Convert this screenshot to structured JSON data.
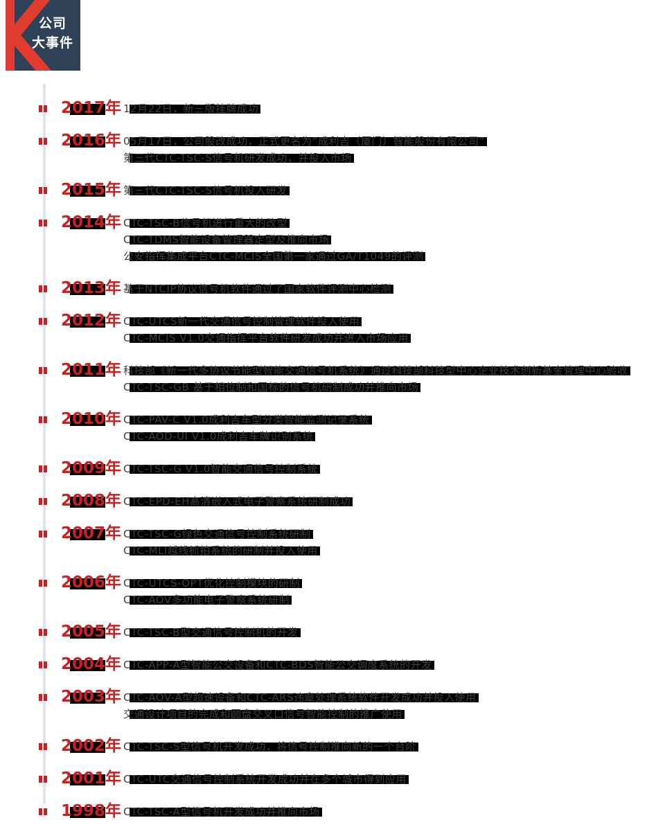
{
  "header": {
    "title_line1": "公司",
    "title_line2": "大事件",
    "logo_letter": "K",
    "box_color": "#2e4156",
    "logo_red": "#e23b30"
  },
  "timeline": {
    "line_color": "#dbe3f1",
    "marker_color": "#c82121",
    "year_color": "#c82121",
    "text_color": "#3e3e3e",
    "highlight_color": "#000000",
    "entries": [
      {
        "year": "2017年",
        "events": [
          "12月22日，新三版挂牌成功"
        ]
      },
      {
        "year": "2016年",
        "events": [
          "05月17日，公司股改成功，正式更名为“成利吉（厦门）智能股份有限公司”",
          "第三代CTC-TSC-S信号机研发成功，并投入市场"
        ]
      },
      {
        "year": "2015年",
        "events": [
          "第三代CTC-TSC-S信号机投入研发"
        ]
      },
      {
        "year": "2014年",
        "events": [
          "CTC-TSC-B信号机进行重大的改型",
          "CTC-TDMS智能设备管理器定型及推向市场",
          "公安指挥集成平台CTC-MCIS全国第一家通过GA/T1049的评测"
        ]
      },
      {
        "year": "2013年",
        "events": [
          "基于NTCIP协议信号机软件通过了国家软件评测中心检测"
        ]
      },
      {
        "year": "2012年",
        "events": [
          "CTC-UTCS新一代交通信号控制管理软件投入使用",
          "CTC-MCIS V1.0交通指挥平台软件研发成功并进入市场应用"
        ]
      },
      {
        "year": "2011年",
        "events": [
          "科技部《新一代多协议节能型智能交通信号机系统》通过科技部科技型中心企业技术创新基金管理中心验收",
          "CTC-TSC-GB 基于相位制和国标的信号机研制成功并推向市场"
        ]
      },
      {
        "year": "2010年",
        "events": [
          "CTC-PAV-C V1.0成利吉车型分类智能监测记录系统",
          "CTC-AOD-UI V1.0成利吉车牌识别系统"
        ]
      },
      {
        "year": "2009年",
        "events": [
          "CTC-TSC-G V1.0智能交通信号控制系统"
        ]
      },
      {
        "year": "2008年",
        "events": [
          "CTC-EPD-EH高清嵌入式电子警察系统研制成功"
        ]
      },
      {
        "year": "2007年",
        "events": [
          "CTC-TSC-G绿色交通信号控制系统研制",
          "CTC-MLI越线抓拍系统的研制并投入使用"
        ]
      },
      {
        "year": "2006年",
        "events": [
          "CTC-UTCS-OPT优化控制模块的研制",
          "CTC-AOV多功能电子警察系统研制"
        ]
      },
      {
        "year": "2005年",
        "events": [
          "CTC-TSC-B型交通信号控制机的开发"
        ]
      },
      {
        "year": "2004年",
        "events": [
          "CTC-APP-A型智能公交设备和CTC-BDS智能公交调度系统的开发"
        ]
      },
      {
        "year": "2003年",
        "events": [
          "CTC-AOV-A型超速设备和CTC-ARS违章处理系统软件开发成功并投入使用",
          "交通设计项目的完成和圆盘交叉口信号智能控制的推广使用"
        ]
      },
      {
        "year": "2002年",
        "events": [
          "CTC-TSC-S型信号机开发成功，将信号控制推向新的一个台阶"
        ]
      },
      {
        "year": "2001年",
        "events": [
          "CTC-UTC交通信号控制系统开发成功并在多个城市得到应用"
        ]
      },
      {
        "year": "1998年",
        "events": [
          "CTC-TSC-A型信号机开发成功并推向市场"
        ]
      }
    ]
  }
}
